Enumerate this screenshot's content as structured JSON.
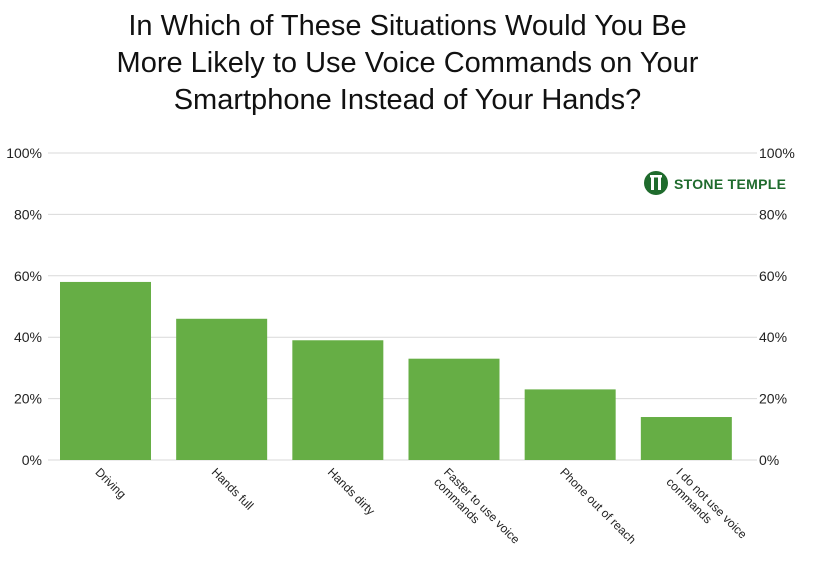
{
  "title_lines": [
    "In Which of These Situations Would You Be",
    "More Likely to Use Voice Commands on Your",
    "Smartphone Instead of Your Hands?"
  ],
  "logo": {
    "text": "STONE TEMPLE",
    "icon": "stone-temple-logo-icon",
    "color": "#1f6b2d"
  },
  "chart_data": {
    "type": "bar",
    "title": "In Which of These Situations Would You Be More Likely to Use Voice Commands on Your Smartphone Instead of Your Hands?",
    "categories": [
      [
        "Driving"
      ],
      [
        "Hands full"
      ],
      [
        "Hands dirty"
      ],
      [
        "Faster to use voice",
        "commands"
      ],
      [
        "Phone out of reach"
      ],
      [
        "I do not use voice",
        "commands"
      ]
    ],
    "values": [
      58,
      46,
      39,
      33,
      23,
      14
    ],
    "ylim": [
      0,
      100
    ],
    "yticks": [
      "0%",
      "20%",
      "40%",
      "60%",
      "80%",
      "100%"
    ],
    "ytick_values": [
      0,
      20,
      40,
      60,
      80,
      100
    ],
    "grid": true,
    "bar_color": "#66ae45",
    "grid_color": "#d9d9d9",
    "xlabel": "",
    "ylabel": ""
  }
}
